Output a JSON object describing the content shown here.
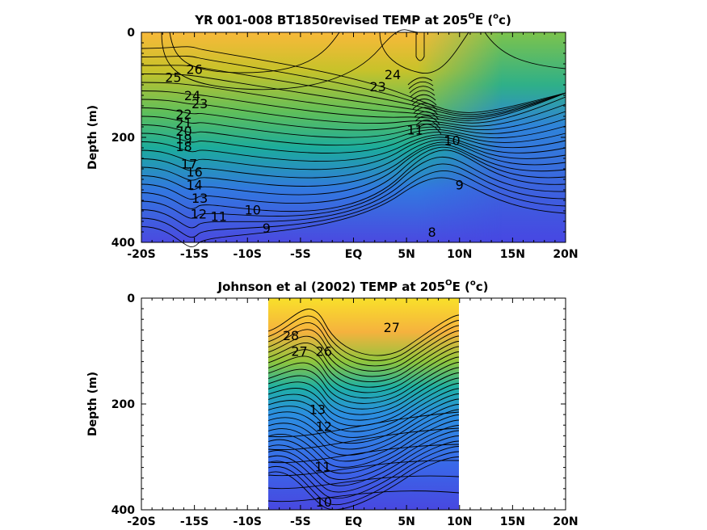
{
  "chart_data": [
    {
      "type": "heatmap",
      "title": "YR 001-008 BT1850revised TEMP at 205",
      "title_deg": "O",
      "title_e": "E (",
      "title_deg2": "o",
      "title_end": "c)",
      "ylabel": "Depth (m)",
      "x_ticks": [
        "-20S",
        "-15S",
        "-10S",
        "-5S",
        "EQ",
        "5N",
        "10N",
        "15N",
        "20N"
      ],
      "x_tick_values": [
        -20,
        -15,
        -10,
        -5,
        0,
        5,
        10,
        15,
        20
      ],
      "xlim": [
        -20,
        20
      ],
      "y_ticks": [
        "0",
        "200",
        "400"
      ],
      "y_tick_values": [
        0,
        200,
        400
      ],
      "ylim": [
        0,
        400
      ],
      "y_reversed": true,
      "data_extent": [
        -20,
        20
      ],
      "contour_labels": [
        {
          "text": "26",
          "x": -15.0,
          "y": 70
        },
        {
          "text": "25",
          "x": -17.0,
          "y": 85
        },
        {
          "text": "24",
          "x": -15.2,
          "y": 120
        },
        {
          "text": "23",
          "x": -14.5,
          "y": 135
        },
        {
          "text": "22",
          "x": -16.0,
          "y": 155
        },
        {
          "text": "21",
          "x": -16.0,
          "y": 172
        },
        {
          "text": "20",
          "x": -16.0,
          "y": 188
        },
        {
          "text": "19",
          "x": -16.0,
          "y": 202
        },
        {
          "text": "18",
          "x": -16.0,
          "y": 217
        },
        {
          "text": "17",
          "x": -15.5,
          "y": 250
        },
        {
          "text": "16",
          "x": -15.0,
          "y": 265
        },
        {
          "text": "14",
          "x": -15.0,
          "y": 290
        },
        {
          "text": "13",
          "x": -14.5,
          "y": 315
        },
        {
          "text": "12",
          "x": -14.6,
          "y": 345
        },
        {
          "text": "11",
          "x": -12.7,
          "y": 350
        },
        {
          "text": "10",
          "x": -9.5,
          "y": 338
        },
        {
          "text": "9",
          "x": -8.2,
          "y": 372
        },
        {
          "text": "24",
          "x": 3.7,
          "y": 80
        },
        {
          "text": "23",
          "x": 2.3,
          "y": 103
        },
        {
          "text": "11",
          "x": 5.8,
          "y": 185
        },
        {
          "text": "10",
          "x": 9.3,
          "y": 205
        },
        {
          "text": "9",
          "x": 10.0,
          "y": 290
        },
        {
          "text": "8",
          "x": 7.4,
          "y": 380
        }
      ]
    },
    {
      "type": "heatmap",
      "title": "Johnson et al (2002) TEMP at 205",
      "title_deg": "O",
      "title_e": "E (",
      "title_deg2": "o",
      "title_end": "c)",
      "ylabel": "Depth (m)",
      "x_ticks": [
        "-20S",
        "-15S",
        "-10S",
        "-5S",
        "EQ",
        "5N",
        "10N",
        "15N",
        "20N"
      ],
      "x_tick_values": [
        -20,
        -15,
        -10,
        -5,
        0,
        5,
        10,
        15,
        20
      ],
      "xlim": [
        -20,
        20
      ],
      "y_ticks": [
        "0",
        "200",
        "400"
      ],
      "y_tick_values": [
        0,
        200,
        400
      ],
      "ylim": [
        0,
        400
      ],
      "y_reversed": true,
      "data_extent": [
        -8,
        10
      ],
      "contour_labels": [
        {
          "text": "28",
          "x": -5.9,
          "y": 70
        },
        {
          "text": "27",
          "x": -5.1,
          "y": 100
        },
        {
          "text": "26",
          "x": -2.8,
          "y": 100
        },
        {
          "text": "27",
          "x": 3.6,
          "y": 55
        },
        {
          "text": "13",
          "x": -3.4,
          "y": 210
        },
        {
          "text": "12",
          "x": -2.8,
          "y": 242
        },
        {
          "text": "11",
          "x": -2.9,
          "y": 318
        },
        {
          "text": "10",
          "x": -2.8,
          "y": 385
        }
      ]
    }
  ]
}
